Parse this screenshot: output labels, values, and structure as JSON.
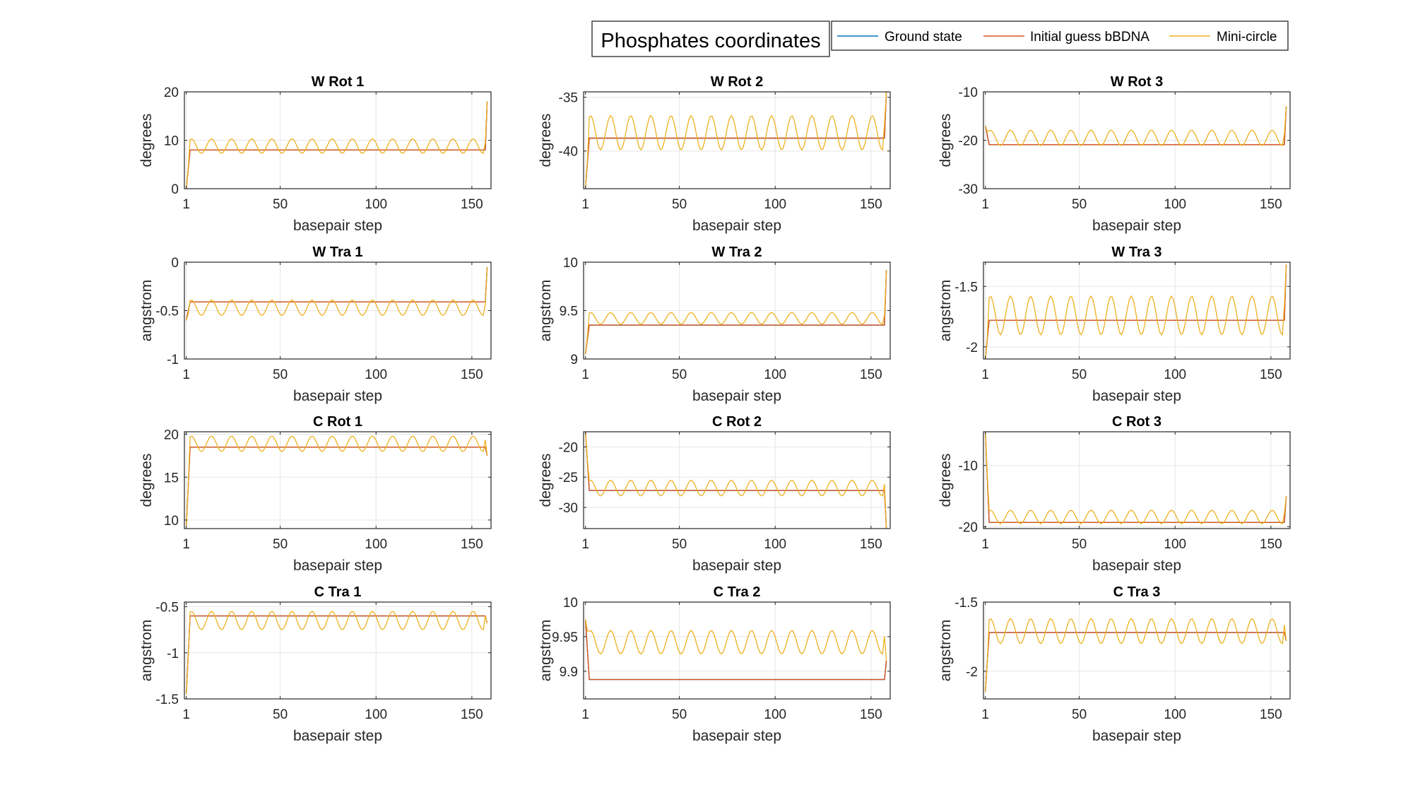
{
  "figure": {
    "title": "Phosphates coordinates",
    "legend": [
      {
        "label": "Ground state",
        "color": "#0072BD"
      },
      {
        "label": "Initial guess bBDNA",
        "color": "#D95319"
      },
      {
        "label": "Mini-circle",
        "color": "#EDB120"
      }
    ]
  },
  "chart_data": [
    {
      "type": "line",
      "title": "W Rot 1",
      "xlabel": "basepair step",
      "ylabel": "degrees",
      "xlim": [
        0,
        160
      ],
      "ylim": [
        0,
        20
      ],
      "yticks": [
        0,
        10,
        20
      ],
      "xticks": [
        1,
        50,
        100,
        150
      ],
      "grid": true,
      "series": [
        {
          "name": "Ground state",
          "base": 8.0
        },
        {
          "name": "Initial guess bBDNA",
          "base": 8.0
        },
        {
          "name": "Mini-circle",
          "mean": 8.8,
          "amp": 1.5,
          "period": 10.5
        }
      ],
      "ends": {
        "start": 0,
        "end": 18
      }
    },
    {
      "type": "line",
      "title": "W Rot 2",
      "xlabel": "basepair step",
      "ylabel": "degrees",
      "xlim": [
        0,
        160
      ],
      "ylim": [
        -43.5,
        -34.5
      ],
      "yticks": [
        -40,
        -35
      ],
      "ytick_labels": [
        "-40",
        "-35"
      ],
      "xticks": [
        1,
        50,
        100,
        150
      ],
      "grid": true,
      "series": [
        {
          "name": "Ground state",
          "base": -38.8
        },
        {
          "name": "Initial guess bBDNA",
          "base": -38.8
        },
        {
          "name": "Mini-circle",
          "mean": -38.3,
          "amp": 1.6,
          "period": 10.5
        }
      ],
      "ends": {
        "start": -43.5,
        "end": -34.5
      }
    },
    {
      "type": "line",
      "title": "W Rot 3",
      "xlabel": "basepair step",
      "ylabel": "degrees",
      "xlim": [
        0,
        160
      ],
      "ylim": [
        -30,
        -10
      ],
      "yticks": [
        -30,
        -20,
        -10
      ],
      "xticks": [
        1,
        50,
        100,
        150
      ],
      "grid": true,
      "series": [
        {
          "name": "Ground state",
          "base": -20.9
        },
        {
          "name": "Initial guess bBDNA",
          "base": -20.9
        },
        {
          "name": "Mini-circle",
          "mean": -19.5,
          "amp": 1.6,
          "period": 10.5
        }
      ],
      "ends": {
        "start": -17,
        "end": -13
      }
    },
    {
      "type": "line",
      "title": "W Tra 1",
      "xlabel": "basepair step",
      "ylabel": "angstrom",
      "xlim": [
        0,
        160
      ],
      "ylim": [
        -1,
        0
      ],
      "yticks": [
        -1,
        -0.5,
        0
      ],
      "xticks": [
        1,
        50,
        100,
        150
      ],
      "grid": true,
      "series": [
        {
          "name": "Ground state",
          "base": -0.41
        },
        {
          "name": "Initial guess bBDNA",
          "base": -0.41
        },
        {
          "name": "Mini-circle",
          "mean": -0.47,
          "amp": 0.08,
          "period": 10.5
        }
      ],
      "ends": {
        "start": -0.6,
        "end": -0.05
      }
    },
    {
      "type": "line",
      "title": "W Tra 2",
      "xlabel": "basepair step",
      "ylabel": "angstrom",
      "xlim": [
        0,
        160
      ],
      "ylim": [
        9,
        10
      ],
      "yticks": [
        9,
        9.5,
        10
      ],
      "xticks": [
        1,
        50,
        100,
        150
      ],
      "grid": true,
      "series": [
        {
          "name": "Ground state",
          "base": 9.35
        },
        {
          "name": "Initial guess bBDNA",
          "base": 9.35
        },
        {
          "name": "Mini-circle",
          "mean": 9.42,
          "amp": 0.06,
          "period": 10.5
        }
      ],
      "ends": {
        "start": 9.05,
        "end": 9.92
      }
    },
    {
      "type": "line",
      "title": "W Tra 3",
      "xlabel": "basepair step",
      "ylabel": "angstrom",
      "xlim": [
        0,
        160
      ],
      "ylim": [
        -2.1,
        -1.3
      ],
      "yticks": [
        -2,
        -1.5
      ],
      "xticks": [
        1,
        50,
        100,
        150
      ],
      "grid": true,
      "series": [
        {
          "name": "Ground state",
          "base": -1.78
        },
        {
          "name": "Initial guess bBDNA",
          "base": -1.78
        },
        {
          "name": "Mini-circle",
          "mean": -1.74,
          "amp": 0.16,
          "period": 10.5
        }
      ],
      "ends": {
        "start": -2.1,
        "end": -1.32
      }
    },
    {
      "type": "line",
      "title": "C Rot 1",
      "xlabel": "basepair step",
      "ylabel": "degrees",
      "xlim": [
        0,
        160
      ],
      "ylim": [
        9,
        20.3
      ],
      "yticks": [
        10,
        15,
        20
      ],
      "xticks": [
        1,
        50,
        100,
        150
      ],
      "grid": true,
      "series": [
        {
          "name": "Ground state",
          "base": 18.5
        },
        {
          "name": "Initial guess bBDNA",
          "base": 18.5
        },
        {
          "name": "Mini-circle",
          "mean": 18.9,
          "amp": 0.9,
          "period": 10.5
        }
      ],
      "ends": {
        "start": 9.3,
        "end": 17.5
      }
    },
    {
      "type": "line",
      "title": "C Rot 2",
      "xlabel": "basepair step",
      "ylabel": "degrees",
      "xlim": [
        0,
        160
      ],
      "ylim": [
        -33.5,
        -17.5
      ],
      "yticks": [
        -30,
        -25,
        -20
      ],
      "xticks": [
        1,
        50,
        100,
        150
      ],
      "grid": true,
      "series": [
        {
          "name": "Ground state",
          "base": -27.2
        },
        {
          "name": "Initial guess bBDNA",
          "base": -27.2
        },
        {
          "name": "Mini-circle",
          "mean": -26.8,
          "amp": 1.3,
          "period": 10.5
        }
      ],
      "ends": {
        "start": -17.5,
        "end": -33.5
      }
    },
    {
      "type": "line",
      "title": "C Rot 3",
      "xlabel": "basepair step",
      "ylabel": "degrees",
      "xlim": [
        0,
        160
      ],
      "ylim": [
        -20.3,
        -4.5
      ],
      "yticks": [
        -20,
        -10
      ],
      "xticks": [
        1,
        50,
        100,
        150
      ],
      "grid": true,
      "series": [
        {
          "name": "Ground state",
          "base": -19.3
        },
        {
          "name": "Initial guess bBDNA",
          "base": -19.3
        },
        {
          "name": "Mini-circle",
          "mean": -18.4,
          "amp": 1.1,
          "period": 10.5
        }
      ],
      "ends": {
        "start": -4.5,
        "end": -15
      }
    },
    {
      "type": "line",
      "title": "C Tra 1",
      "xlabel": "basepair step",
      "ylabel": "angstrom",
      "xlim": [
        0,
        160
      ],
      "ylim": [
        -1.5,
        -0.45
      ],
      "yticks": [
        -1.5,
        -1,
        -0.5
      ],
      "xticks": [
        1,
        50,
        100,
        150
      ],
      "grid": true,
      "series": [
        {
          "name": "Ground state",
          "base": -0.6
        },
        {
          "name": "Initial guess bBDNA",
          "base": -0.6
        },
        {
          "name": "Mini-circle",
          "mean": -0.65,
          "amp": 0.1,
          "period": 10.5
        }
      ],
      "ends": {
        "start": -1.45,
        "end": -0.68
      }
    },
    {
      "type": "line",
      "title": "C Tra 2",
      "xlabel": "basepair step",
      "ylabel": "angstrom",
      "xlim": [
        0,
        160
      ],
      "ylim": [
        9.86,
        10
      ],
      "yticks": [
        9.9,
        9.95,
        10
      ],
      "xticks": [
        1,
        50,
        100,
        150
      ],
      "grid": true,
      "series": [
        {
          "name": "Ground state",
          "base": 9.888
        },
        {
          "name": "Initial guess bBDNA",
          "base": 9.888
        },
        {
          "name": "Mini-circle",
          "mean": 9.942,
          "amp": 0.017,
          "period": 10.5
        }
      ],
      "ends": {
        "start": 9.975,
        "end": 9.915
      }
    },
    {
      "type": "line",
      "title": "C Tra 3",
      "xlabel": "basepair step",
      "ylabel": "angstrom",
      "xlim": [
        0,
        160
      ],
      "ylim": [
        -2.2,
        -1.5
      ],
      "yticks": [
        -2,
        -1.5
      ],
      "xticks": [
        1,
        50,
        100,
        150
      ],
      "grid": true,
      "series": [
        {
          "name": "Ground state",
          "base": -1.72
        },
        {
          "name": "Initial guess bBDNA",
          "base": -1.72
        },
        {
          "name": "Mini-circle",
          "mean": -1.71,
          "amp": 0.09,
          "period": 10.5
        }
      ],
      "ends": {
        "start": -2.15,
        "end": -1.78
      }
    }
  ]
}
